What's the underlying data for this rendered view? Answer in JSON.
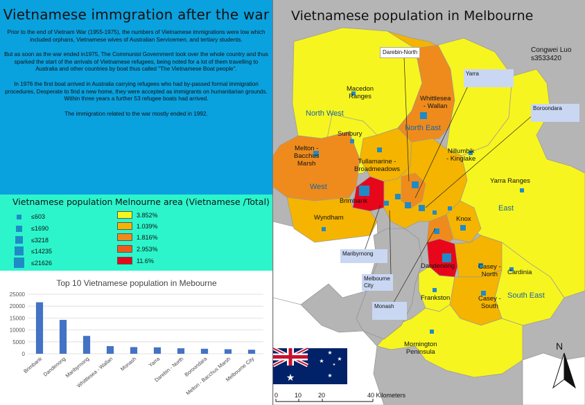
{
  "info_panel": {
    "title": "Vietnamese immgration after the war",
    "paragraphs": [
      "Prior to the end of Vietnam War (1955-1975), the numbers of Vietnamese immigrations were low which included orphans, Vietnamese wives of Australian Servicemen, and tertiary students.",
      "But as soon as the war ended in1975, The Communist Government took over the whole country and thus sparked the start of the arrivals of Vietnamese refugees, being noted for a lot of them travelling to Australia and other countries by boat thus called \"The Vietnamese Boat people\".",
      "In 1976 the first boat arrived in Australia carrying refugees who had by-passed formal immigration procedures, Desperate to find a new home, they were accepted as immigrants on humanitarian grounds. Within three years a further 53 refugee boats had arrived.",
      "The immigration related to the war mostly ended in 1992."
    ]
  },
  "legend": {
    "population_title": "Vietnamese population",
    "population_items": [
      "≤603",
      "≤1690",
      "≤3218",
      "≤14235",
      "≤21626"
    ],
    "area_title": "Melnourne area (Vietnamese /Total)",
    "area_items": [
      {
        "label": "3.852%",
        "color": "#f7f51f"
      },
      {
        "label": "1.039%",
        "color": "#f5b400"
      },
      {
        "label": "1.816%",
        "color": "#ef8b1c"
      },
      {
        "label": "2.953%",
        "color": "#ef5a1c"
      },
      {
        "label": "11.6%",
        "color": "#e8071a"
      }
    ],
    "symbol_color": "#1f8bc6"
  },
  "chart_data": {
    "type": "bar",
    "title": "Top 10  Vietnamese population in Mebourne",
    "categories": [
      "Brimbank",
      "Dandenong",
      "Maribyrnong",
      "Whittlesea - Wallan",
      "Monash",
      "Yarra",
      "Darebin - North",
      "Boroondara",
      "Melton - Bacchus Marsh",
      "Melbourne City"
    ],
    "values": [
      21626,
      14235,
      7500,
      3218,
      2800,
      2700,
      2300,
      2100,
      1900,
      1700
    ],
    "ylim": [
      0,
      25000
    ],
    "yticks": [
      "0",
      "5000",
      "10000",
      "15000",
      "20000",
      "25000"
    ],
    "grid": true,
    "bar_color": "#4472c4"
  },
  "map": {
    "title": "Vietnamese population in Melbourne",
    "author": [
      "Congwei Luo",
      "s3533420"
    ],
    "zones": [
      "North West",
      "North East",
      "West",
      "East",
      "South East"
    ],
    "region_labels": [
      {
        "id": "macedon",
        "text": "Macedon\nRanges"
      },
      {
        "id": "whittlesea",
        "text": "Whittlesea\n- Wallan"
      },
      {
        "id": "sunbury",
        "text": "Sunbury"
      },
      {
        "id": "melton",
        "text": "Melton -\nBacchus\nMarsh"
      },
      {
        "id": "tullamarine",
        "text": "Tullamarine -\nBroadmeadows"
      },
      {
        "id": "nillumbik",
        "text": "Nillumbik\n- Kinglake"
      },
      {
        "id": "yarra-ranges",
        "text": "Yarra Ranges"
      },
      {
        "id": "brimbank",
        "text": "Brimbank"
      },
      {
        "id": "wyndham",
        "text": "Wyndham"
      },
      {
        "id": "knox",
        "text": "Knox"
      },
      {
        "id": "dandenong",
        "text": "Dandenong"
      },
      {
        "id": "casey-north",
        "text": "Casey -\nNorth"
      },
      {
        "id": "cardinia",
        "text": "Cardinia"
      },
      {
        "id": "casey-south",
        "text": "Casey -\nSouth"
      },
      {
        "id": "frankston",
        "text": "Frankston"
      },
      {
        "id": "mornington",
        "text": "Mornington\nPeninsula"
      }
    ],
    "callouts": [
      {
        "id": "darebin-north",
        "text": "Darebin-North"
      },
      {
        "id": "yarra",
        "text": "Yarra"
      },
      {
        "id": "boroondara",
        "text": "Boroondara"
      },
      {
        "id": "maribyrnong",
        "text": "Maribyrnong"
      },
      {
        "id": "melbourne-city",
        "text": "Melbourne\nCity"
      },
      {
        "id": "monash",
        "text": "Monash"
      }
    ],
    "scale": {
      "ticks": [
        "0",
        "10",
        "20",
        "40 Kilometers"
      ]
    },
    "north_label": "N"
  }
}
